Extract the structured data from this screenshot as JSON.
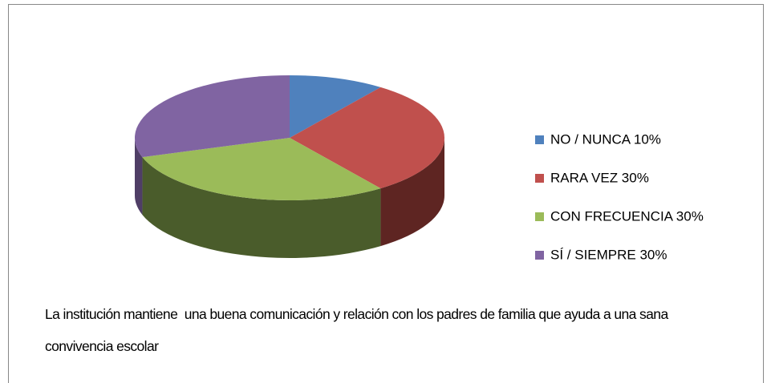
{
  "chart_data": {
    "type": "pie",
    "categories": [
      "NO / NUNCA 10%",
      "RARA VEZ 30%",
      "CON FRECUENCIA 30%",
      "SÍ / SIEMPRE 30%"
    ],
    "values": [
      10,
      30,
      30,
      30
    ],
    "colors": [
      "#4f81bd",
      "#c0504d",
      "#9bbb59",
      "#8064a2"
    ],
    "side_colors": [
      "#36597f",
      "#5e2522",
      "#4a5c2b",
      "#4f3e66"
    ],
    "legend": "right",
    "caption": "La institución mantiene  una buena comunicación y relación con los padres de familia que ayuda a una sana convivencia escolar"
  }
}
